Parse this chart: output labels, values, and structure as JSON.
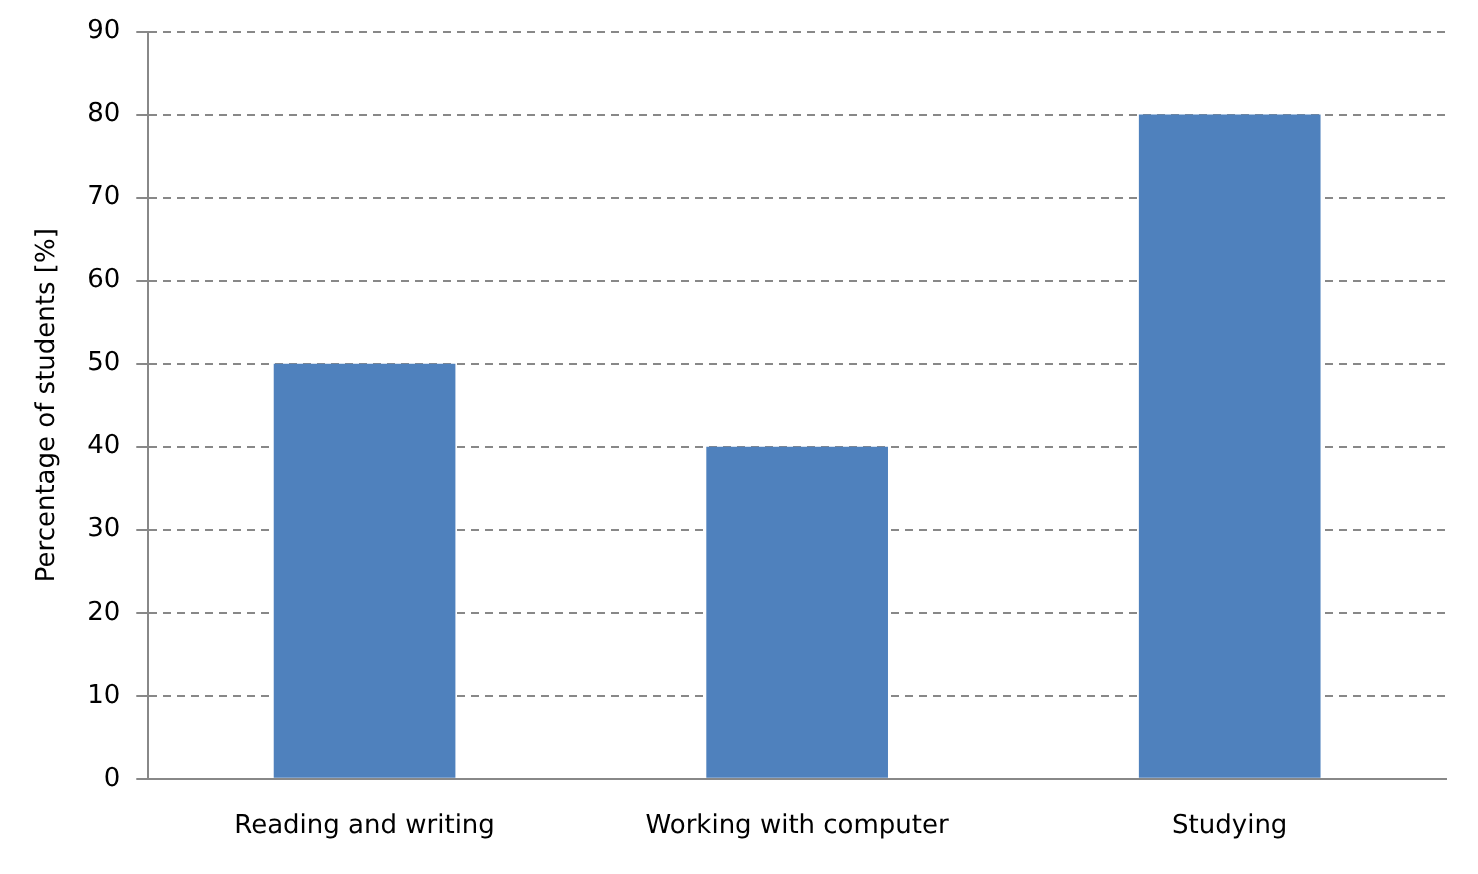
{
  "chart_data": {
    "type": "bar",
    "ylabel": "Percentage of students [%]",
    "categories": [
      "Reading and writing",
      "Working with computer",
      "Studying"
    ],
    "values": [
      50,
      40,
      80
    ],
    "color": "#4f81bd",
    "ylim": [
      0,
      90
    ],
    "yticks": [
      0,
      10,
      20,
      30,
      40,
      50,
      60,
      70,
      80,
      90
    ],
    "grid": "y",
    "legend": false
  }
}
